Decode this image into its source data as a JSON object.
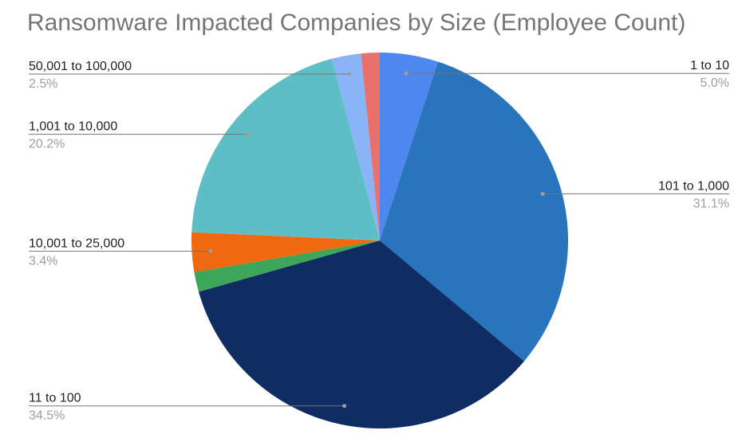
{
  "chart_data": {
    "type": "pie",
    "title": "Ransomware Impacted Companies by Size (Employee Count)",
    "slices": [
      {
        "label": "1 to 10",
        "value": 5.0,
        "pct_label": "5.0%",
        "color": "#4f87f0",
        "label_side": "right"
      },
      {
        "label": "101 to 1,000",
        "value": 31.1,
        "pct_label": "31.1%",
        "color": "#2875bd",
        "label_side": "right"
      },
      {
        "label": "11 to 100",
        "value": 34.5,
        "pct_label": "34.5%",
        "color": "#0f2d63",
        "label_side": "left"
      },
      {
        "label": "",
        "value": 1.7,
        "pct_label": "",
        "color": "#3ea65a",
        "label_side": "none"
      },
      {
        "label": "10,001 to 25,000",
        "value": 3.4,
        "pct_label": "3.4%",
        "color": "#f0690f",
        "label_side": "left"
      },
      {
        "label": "1,001 to 10,000",
        "value": 20.2,
        "pct_label": "20.2%",
        "color": "#5ebec6",
        "label_side": "left"
      },
      {
        "label": "50,001 to 100,000",
        "value": 2.5,
        "pct_label": "2.5%",
        "color": "#8ab4f8",
        "label_side": "left"
      },
      {
        "label": "",
        "value": 1.6,
        "pct_label": "",
        "color": "#e8716e",
        "label_side": "none"
      }
    ]
  }
}
